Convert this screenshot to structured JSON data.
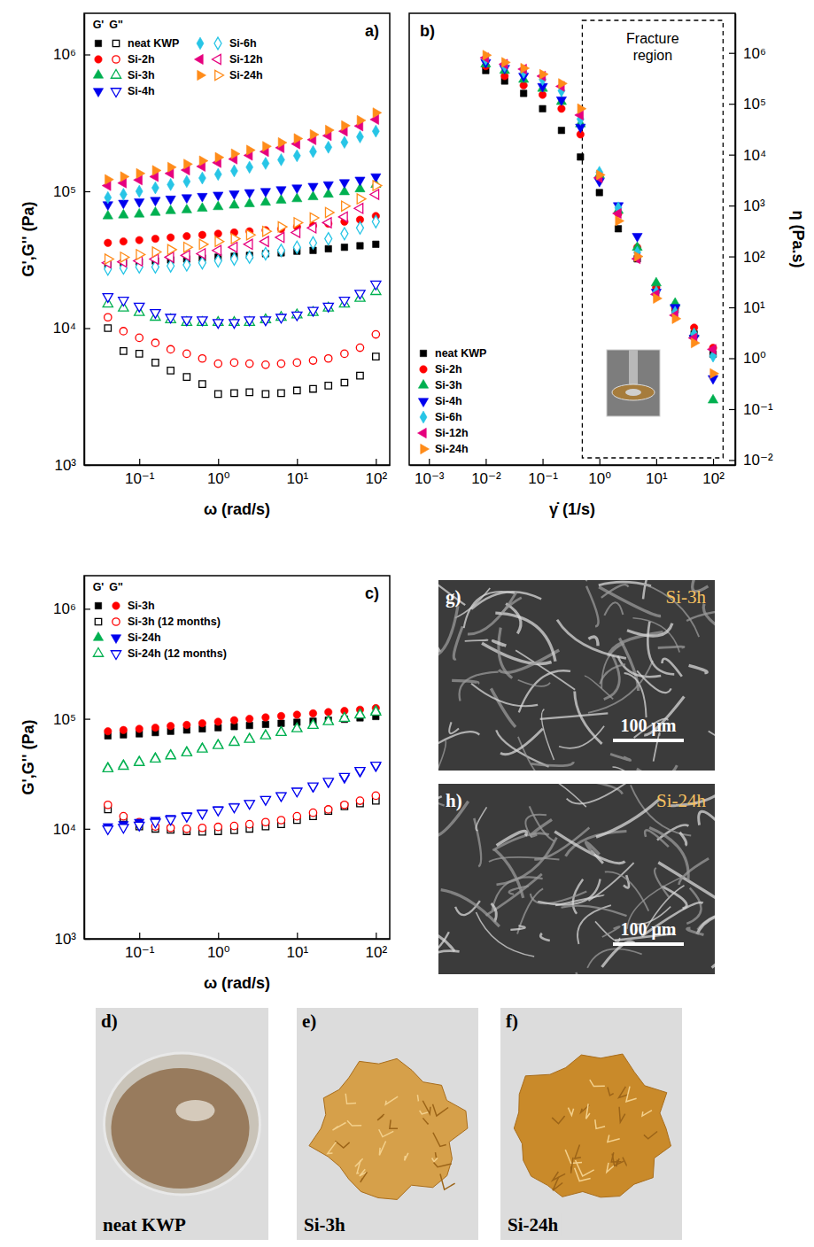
{
  "chart_data": [
    {
      "type": "scatter",
      "panel": "a)",
      "log": true,
      "x_label": "ω (rad/s)",
      "y_label": "G',G'' (Pa)",
      "legend": "upper left",
      "legend_headers": [
        "G'",
        "G''"
      ],
      "x": [
        0.04,
        0.063,
        0.1,
        0.16,
        0.25,
        0.4,
        0.63,
        1,
        1.6,
        2.5,
        4,
        6.3,
        10,
        16,
        25,
        40,
        63,
        100
      ],
      "xlim": [
        0.02,
        150
      ],
      "ylim": [
        1000,
        2000000
      ],
      "xticks": [
        {
          "value": 0.1,
          "label": "10⁻¹"
        },
        {
          "value": 1,
          "label": "10⁰"
        },
        {
          "value": 10,
          "label": "10¹"
        },
        {
          "value": 100,
          "label": "10²"
        }
      ],
      "yticks": [
        {
          "value": 1000,
          "label": "10³"
        },
        {
          "value": 10000,
          "label": "10⁴"
        },
        {
          "value": 100000,
          "label": "10⁵"
        },
        {
          "value": 1000000,
          "label": "10⁶"
        }
      ],
      "series": [
        {
          "name": "neat KWP",
          "storage": {
            "color": "#000000",
            "marker": "square",
            "values": [
              29000,
              30000,
              30500,
              31000,
              31500,
              32000,
              32500,
              33000,
              33500,
              34000,
              35000,
              35500,
              36500,
              37000,
              38000,
              39000,
              40000,
              41000
            ]
          },
          "loss": {
            "color": "#000000",
            "marker": "square-open",
            "values": [
              10000,
              6800,
              6500,
              5600,
              4900,
              4400,
              3900,
              3300,
              3350,
              3400,
              3300,
              3350,
              3500,
              3600,
              3800,
              4000,
              4500,
              6200
            ]
          }
        },
        {
          "name": "Si-2h",
          "storage": {
            "color": "#ff0000",
            "marker": "circle",
            "values": [
              42000,
              43000,
              44000,
              45000,
              46000,
              47000,
              48000,
              49000,
              50000,
              51000,
              52000,
              53000,
              55000,
              56000,
              58000,
              60000,
              62000,
              66000
            ]
          },
          "loss": {
            "color": "#ff0000",
            "marker": "circle-open",
            "values": [
              12000,
              9500,
              8500,
              7800,
              7000,
              6500,
              6000,
              5500,
              5600,
              5500,
              5400,
              5500,
              5600,
              5800,
              6000,
              6500,
              7200,
              9000
            ]
          }
        },
        {
          "name": "Si-3h",
          "storage": {
            "color": "#00b050",
            "marker": "triangle-up",
            "values": [
              66000,
              67000,
              68000,
              70000,
              72000,
              73000,
              75000,
              77000,
              79000,
              81000,
              83000,
              86000,
              88000,
              91000,
              95000,
              99000,
              104000,
              112000
            ]
          },
          "loss": {
            "color": "#00b050",
            "marker": "triangle-up-open",
            "values": [
              15000,
              14000,
              13000,
              12000,
              11500,
              11000,
              11000,
              11000,
              11000,
              11000,
              11500,
              12000,
              12500,
              13000,
              14000,
              15000,
              16500,
              18500
            ]
          }
        },
        {
          "name": "Si-4h",
          "storage": {
            "color": "#0000ee",
            "marker": "triangle-down",
            "values": [
              80000,
              82000,
              84000,
              86000,
              88000,
              90000,
              92000,
              94000,
              96000,
              98000,
              100000,
              103000,
              106000,
              109000,
              112000,
              116000,
              121000,
              128000
            ]
          },
          "loss": {
            "color": "#0000ee",
            "marker": "triangle-down-open",
            "values": [
              17000,
              16000,
              14500,
              13000,
              12000,
              11500,
              11500,
              11000,
              11000,
              11500,
              11500,
              12000,
              12500,
              13500,
              14500,
              16000,
              18000,
              21000
            ]
          }
        },
        {
          "name": "Si-6h",
          "storage": {
            "color": "#27c5e6",
            "marker": "diamond",
            "values": [
              90000,
              95000,
              100000,
              106000,
              112000,
              118000,
              125000,
              133000,
              141000,
              150000,
              160000,
              170000,
              182000,
              195000,
              210000,
              228000,
              250000,
              275000
            ]
          },
          "loss": {
            "color": "#27c5e6",
            "marker": "diamond-open",
            "values": [
              27000,
              27500,
              28000,
              28000,
              28500,
              29000,
              30000,
              31000,
              32000,
              33000,
              35000,
              37000,
              39000,
              42000,
              45000,
              49000,
              54000,
              60000
            ]
          }
        },
        {
          "name": "Si-12h",
          "storage": {
            "color": "#e6007e",
            "marker": "triangle-left",
            "values": [
              110000,
              115000,
              121000,
              128000,
              135000,
              143000,
              152000,
              162000,
              172000,
              183000,
              195000,
              208000,
              222000,
              238000,
              255000,
              275000,
              300000,
              335000
            ]
          },
          "loss": {
            "color": "#e6007e",
            "marker": "triangle-left-open",
            "values": [
              30000,
              30500,
              31000,
              32000,
              33000,
              34000,
              35000,
              37000,
              39000,
              41000,
              43000,
              46000,
              50000,
              54000,
              59000,
              65000,
              75000,
              95000
            ]
          }
        },
        {
          "name": "Si-24h",
          "storage": {
            "color": "#ff8c1a",
            "marker": "triangle-right",
            "values": [
              122000,
              128000,
              135000,
              142000,
              150000,
              158000,
              167000,
              177000,
              188000,
              200000,
              213000,
              227000,
              243000,
              260000,
              280000,
              302000,
              330000,
              375000
            ]
          },
          "loss": {
            "color": "#ff8c1a",
            "marker": "triangle-right-open",
            "values": [
              32000,
              33000,
              34500,
              36000,
              37500,
              39000,
              41000,
              43000,
              45000,
              48000,
              51000,
              55000,
              59000,
              64000,
              70000,
              78000,
              88000,
              110000
            ]
          }
        }
      ]
    },
    {
      "type": "scatter",
      "panel": "b)",
      "log": true,
      "x_label": "γ̇ (1/s)",
      "y_label": "η (Pa.s)",
      "legend": "lower left",
      "regions": [
        {
          "label": "Fracture region",
          "x": [
            0.5,
            150
          ]
        }
      ],
      "x": [
        0.01,
        0.0215,
        0.0464,
        0.1,
        0.215,
        0.464,
        1,
        2.15,
        4.64,
        10,
        21.5,
        46.4,
        100
      ],
      "xlim": [
        0.00045,
        245
      ],
      "ylim": [
        0.008,
        6000000
      ],
      "xticks": [
        {
          "value": 0.001,
          "label": "10⁻³"
        },
        {
          "value": 0.01,
          "label": "10⁻²"
        },
        {
          "value": 0.1,
          "label": "10⁻¹"
        },
        {
          "value": 1,
          "label": "10⁰"
        },
        {
          "value": 10,
          "label": "10¹"
        },
        {
          "value": 100,
          "label": "10²"
        }
      ],
      "yticks": [
        {
          "value": 0.01,
          "label": "10⁻²"
        },
        {
          "value": 0.1,
          "label": "10⁻¹"
        },
        {
          "value": 1,
          "label": "10⁰"
        },
        {
          "value": 10,
          "label": "10¹"
        },
        {
          "value": 100,
          "label": "10²"
        },
        {
          "value": 1000,
          "label": "10³"
        },
        {
          "value": 10000,
          "label": "10⁴"
        },
        {
          "value": 100000,
          "label": "10⁵"
        },
        {
          "value": 1000000,
          "label": "10⁶"
        }
      ],
      "series": [
        {
          "name": "neat KWP",
          "color": "#000000",
          "marker": "square",
          "values": [
            450000,
            280000,
            160000,
            80000,
            30000,
            9000,
            1800,
            350,
            90,
            22,
            9,
            3,
            1.2
          ]
        },
        {
          "name": "Si-2h",
          "color": "#ff0000",
          "marker": "circle",
          "values": [
            550000,
            350000,
            230000,
            150000,
            80000,
            25000,
            3500,
            700,
            150,
            25,
            10,
            4,
            1.6
          ]
        },
        {
          "name": "Si-3h",
          "color": "#00b050",
          "marker": "triangle-up",
          "values": [
            600000,
            450000,
            300000,
            200000,
            110000,
            40000,
            4000,
            800,
            150,
            30,
            12,
            3,
            0.15
          ]
        },
        {
          "name": "Si-4h",
          "color": "#0000ee",
          "marker": "triangle-down",
          "values": [
            650000,
            500000,
            350000,
            220000,
            120000,
            35000,
            3000,
            1000,
            250,
            20,
            10,
            2.5,
            0.4
          ]
        },
        {
          "name": "Si-6h",
          "color": "#27c5e6",
          "marker": "diamond",
          "values": [
            750000,
            550000,
            420000,
            300000,
            180000,
            50000,
            4500,
            900,
            120,
            20,
            8,
            3,
            1.1
          ]
        },
        {
          "name": "Si-12h",
          "color": "#e6007e",
          "marker": "triangle-left",
          "values": [
            800000,
            600000,
            480000,
            350000,
            220000,
            60000,
            3500,
            700,
            90,
            18,
            7,
            2.5,
            1.5
          ]
        },
        {
          "name": "Si-24h",
          "color": "#ff8c1a",
          "marker": "triangle-right",
          "values": [
            900000,
            650000,
            500000,
            380000,
            250000,
            80000,
            4000,
            500,
            100,
            15,
            6,
            2,
            0.5
          ]
        }
      ]
    },
    {
      "type": "scatter",
      "panel": "c)",
      "log": true,
      "x_label": "ω (rad/s)",
      "y_label": "G',G'' (Pa)",
      "legend": "upper left",
      "legend_headers": [
        "G'",
        "G''"
      ],
      "x": [
        0.04,
        0.063,
        0.1,
        0.16,
        0.25,
        0.4,
        0.63,
        1,
        1.6,
        2.5,
        4,
        6.3,
        10,
        16,
        25,
        40,
        63,
        100
      ],
      "xlim": [
        0.02,
        150
      ],
      "ylim": [
        1000,
        2000000
      ],
      "xticks": [
        {
          "value": 0.1,
          "label": "10⁻¹"
        },
        {
          "value": 1,
          "label": "10⁰"
        },
        {
          "value": 10,
          "label": "10¹"
        },
        {
          "value": 100,
          "label": "10²"
        }
      ],
      "yticks": [
        {
          "value": 1000,
          "label": "10³"
        },
        {
          "value": 10000,
          "label": "10⁴"
        },
        {
          "value": 100000,
          "label": "10⁵"
        },
        {
          "value": 1000000,
          "label": "10⁶"
        }
      ],
      "series": [
        {
          "name": "Si-3h",
          "storage": {
            "color": "#000000",
            "marker": "square",
            "values": [
              70000,
              71500,
              73000,
              75000,
              77000,
              79000,
              81000,
              83000,
              85000,
              87000,
              89000,
              91000,
              93000,
              95000,
              97000,
              99000,
              102000,
              105000
            ]
          },
          "loss": {
            "color": "#ff0000",
            "marker": "circle",
            "values": [
              77000,
              79000,
              81000,
              83000,
              86000,
              88000,
              91000,
              94000,
              97000,
              100000,
              103000,
              106000,
              109000,
              112000,
              115000,
              118000,
              121000,
              125000
            ]
          }
        },
        {
          "name": "Si-3h (12 months)",
          "storage": {
            "color": "#000000",
            "marker": "square-open",
            "values": [
              15000,
              12500,
              10500,
              10000,
              9800,
              9500,
              9400,
              9500,
              9700,
              10000,
              10500,
              11000,
              12000,
              13000,
              14500,
              16000,
              17000,
              18000
            ]
          },
          "loss": {
            "color": "#ff0000",
            "marker": "circle-open",
            "values": [
              16500,
              13000,
              11500,
              10500,
              10200,
              10000,
              10200,
              10400,
              10600,
              11000,
              11500,
              12000,
              13000,
              14000,
              15000,
              16500,
              18000,
              20000
            ]
          }
        },
        {
          "name": "Si-24h",
          "storage": {
            "color": "#00b050",
            "marker": "triangle-up",
            "values": [
              36000,
              38000,
              41000,
              44000,
              47000,
              50000,
              54000,
              58000,
              62000,
              66000,
              71000,
              76000,
              82000,
              88000,
              95000,
              102000,
              110000,
              118000
            ]
          },
          "loss": {
            "color": "#0000ee",
            "marker": "triangle-down",
            "values": [
              10500,
              11000,
              11500,
              12000,
              12500,
              13200,
              14000,
              15000,
              16000,
              17000,
              18500,
              20000,
              22000,
              24000,
              26500,
              29000,
              33000,
              37000
            ]
          }
        },
        {
          "name": "Si-24h (12 months)",
          "storage": {
            "color": "#00b050",
            "marker": "triangle-up-open",
            "values": [
              35000,
              37000,
              40000,
              43000,
              46000,
              49000,
              53000,
              57000,
              61000,
              65000,
              70000,
              75000,
              81000,
              87000,
              94000,
              101000,
              108000,
              115000
            ]
          },
          "loss": {
            "color": "#0000ee",
            "marker": "triangle-down-open",
            "values": [
              10000,
              10300,
              10800,
              11500,
              12200,
              13000,
              13800,
              14800,
              15800,
              17000,
              18500,
              20000,
              22000,
              24500,
              27000,
              30000,
              34000,
              38000
            ]
          }
        }
      ]
    }
  ],
  "images": [
    {
      "panel": "g)",
      "label": "Si-3h",
      "scale_bar": "100 μm"
    },
    {
      "panel": "h)",
      "label": "Si-24h",
      "scale_bar": "100 μm"
    },
    {
      "panel": "d)",
      "label": "neat KWP"
    },
    {
      "panel": "e)",
      "label": "Si-3h"
    },
    {
      "panel": "f)",
      "label": "Si-24h"
    }
  ]
}
